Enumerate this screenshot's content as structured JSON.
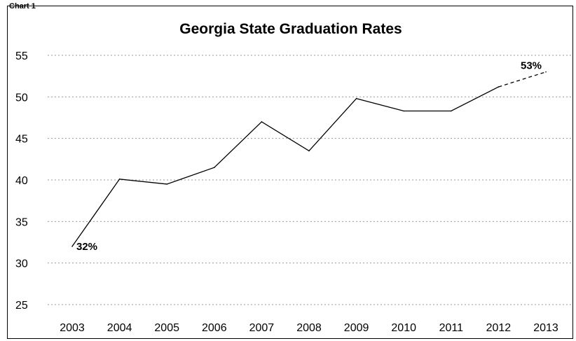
{
  "header_label": "Chart 1",
  "chart_data": {
    "type": "line",
    "title": "Georgia State Graduation Rates",
    "xlabel": "",
    "ylabel": "",
    "categories": [
      "2003",
      "2004",
      "2005",
      "2006",
      "2007",
      "2008",
      "2009",
      "2010",
      "2011",
      "2012",
      "2013"
    ],
    "values": [
      32,
      40.1,
      39.5,
      41.5,
      47,
      43.5,
      49.8,
      48.3,
      48.3,
      51.2,
      53
    ],
    "projected_from_index": 9,
    "ylim": [
      25,
      55
    ],
    "yticks": [
      "25",
      "30",
      "35",
      "40",
      "45",
      "50",
      "55"
    ],
    "grid": true,
    "line_color": "#000000",
    "data_labels": [
      {
        "index": 0,
        "text": "32%"
      },
      {
        "index": 10,
        "text": "53%"
      }
    ]
  }
}
